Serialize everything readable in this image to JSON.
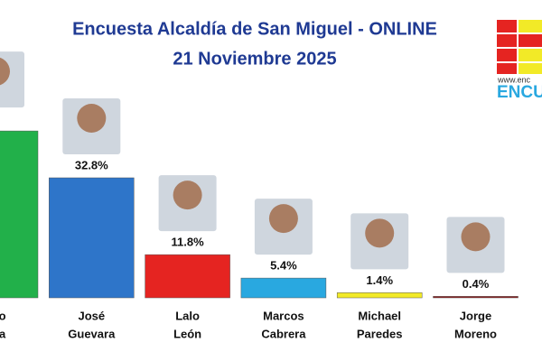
{
  "chart_data": {
    "type": "bar",
    "title": "Encuesta Alcaldía de San Miguel -  ONLINE",
    "subtitle": "21 Noviembre 2025",
    "categories": [
      [
        "cho",
        "leta"
      ],
      [
        "José",
        "Guevara"
      ],
      [
        "Lalo",
        "León"
      ],
      [
        "Marcos",
        "Cabrera"
      ],
      [
        "Michael",
        "Paredes"
      ],
      [
        "Jorge",
        "Moreno"
      ]
    ],
    "values": [
      45.6,
      32.8,
      11.8,
      5.4,
      1.4,
      0.4
    ],
    "value_labels": [
      null,
      "32.8%",
      "11.8%",
      "5.4%",
      "1.4%",
      "0.4%"
    ],
    "colors": [
      "#22b04a",
      "#2e75c9",
      "#e52421",
      "#29a8e0",
      "#f2ea27",
      "#8b1a1a"
    ]
  },
  "logo": {
    "url": "www.enc",
    "name": "ENCU"
  }
}
